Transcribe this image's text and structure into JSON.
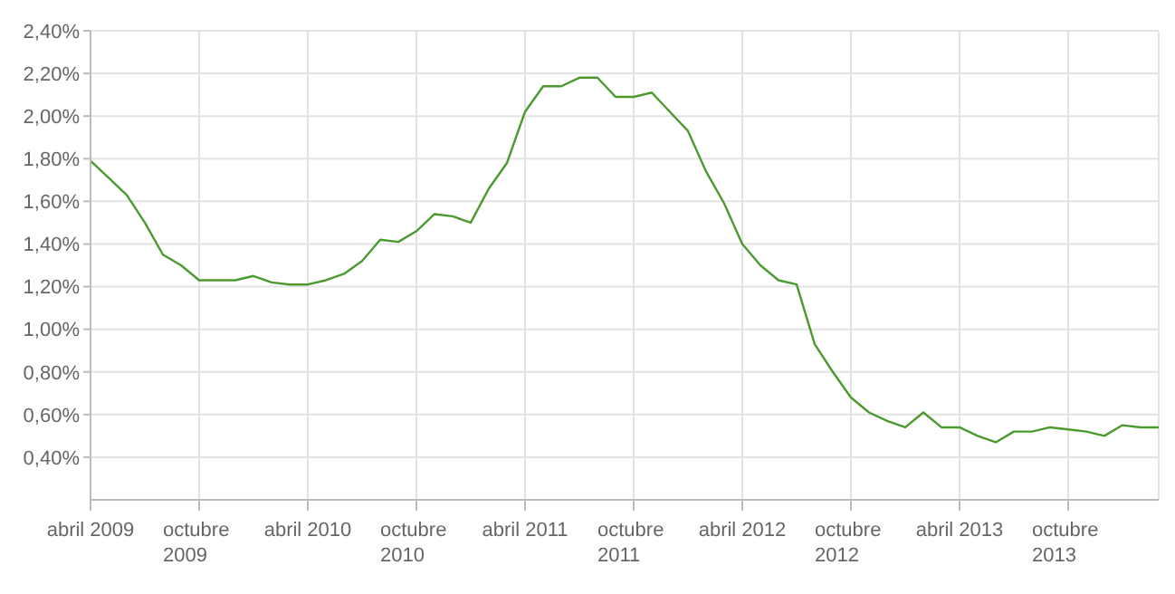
{
  "chart_data": {
    "type": "line",
    "x": [
      "2009-04",
      "2009-05",
      "2009-06",
      "2009-07",
      "2009-08",
      "2009-09",
      "2009-10",
      "2009-11",
      "2009-12",
      "2010-01",
      "2010-02",
      "2010-03",
      "2010-04",
      "2010-05",
      "2010-06",
      "2010-07",
      "2010-08",
      "2010-09",
      "2010-10",
      "2010-11",
      "2010-12",
      "2011-01",
      "2011-02",
      "2011-03",
      "2011-04",
      "2011-05",
      "2011-06",
      "2011-07",
      "2011-08",
      "2011-09",
      "2011-10",
      "2011-11",
      "2011-12",
      "2012-01",
      "2012-02",
      "2012-03",
      "2012-04",
      "2012-05",
      "2012-06",
      "2012-07",
      "2012-08",
      "2012-09",
      "2012-10",
      "2012-11",
      "2012-12",
      "2013-01",
      "2013-02",
      "2013-03",
      "2013-04",
      "2013-05",
      "2013-06",
      "2013-07",
      "2013-08",
      "2013-09",
      "2013-10",
      "2013-11",
      "2013-12",
      "2014-01",
      "2014-02",
      "2014-03"
    ],
    "series": [
      {
        "color": "#4a9a2f",
        "values": [
          1.79,
          1.71,
          1.63,
          1.5,
          1.35,
          1.3,
          1.23,
          1.23,
          1.23,
          1.25,
          1.22,
          1.21,
          1.21,
          1.23,
          1.26,
          1.32,
          1.42,
          1.41,
          1.46,
          1.54,
          1.53,
          1.5,
          1.66,
          1.78,
          2.02,
          2.14,
          2.14,
          2.18,
          2.18,
          2.09,
          2.09,
          2.11,
          2.02,
          1.93,
          1.74,
          1.59,
          1.4,
          1.3,
          1.23,
          1.21,
          0.93,
          0.8,
          0.68,
          0.61,
          0.57,
          0.54,
          0.61,
          0.54,
          0.54,
          0.5,
          0.47,
          0.52,
          0.52,
          0.54,
          0.53,
          0.52,
          0.5,
          0.55,
          0.54,
          0.54
        ]
      }
    ],
    "xlim": [
      "2009-04",
      "2014-03"
    ],
    "xticks": [
      {
        "value": "2009-04",
        "label": "abril 2009"
      },
      {
        "value": "2009-10",
        "label": "octubre 2009"
      },
      {
        "value": "2010-04",
        "label": "abril 2010"
      },
      {
        "value": "2010-10",
        "label": "octubre 2010"
      },
      {
        "value": "2011-04",
        "label": "abril 2011"
      },
      {
        "value": "2011-10",
        "label": "octubre 2011"
      },
      {
        "value": "2012-04",
        "label": "abril 2012"
      },
      {
        "value": "2012-10",
        "label": "octubre 2012"
      },
      {
        "value": "2013-04",
        "label": "abril 2013"
      },
      {
        "value": "2013-10",
        "label": "octubre 2013"
      }
    ],
    "ylim": [
      0.2,
      2.4
    ],
    "yticks": [
      {
        "value": 0.4,
        "label": "0,40%"
      },
      {
        "value": 0.6,
        "label": "0,60%"
      },
      {
        "value": 0.8,
        "label": "0,80%"
      },
      {
        "value": 1.0,
        "label": "1,00%"
      },
      {
        "value": 1.2,
        "label": "1,20%"
      },
      {
        "value": 1.4,
        "label": "1,40%"
      },
      {
        "value": 1.6,
        "label": "1,60%"
      },
      {
        "value": 1.8,
        "label": "1,80%"
      },
      {
        "value": 2.0,
        "label": "2,00%"
      },
      {
        "value": 2.2,
        "label": "2,20%"
      },
      {
        "value": 2.4,
        "label": "2,40%"
      }
    ],
    "grid": true,
    "marker": "none",
    "line_style": "solid",
    "legend": false
  }
}
